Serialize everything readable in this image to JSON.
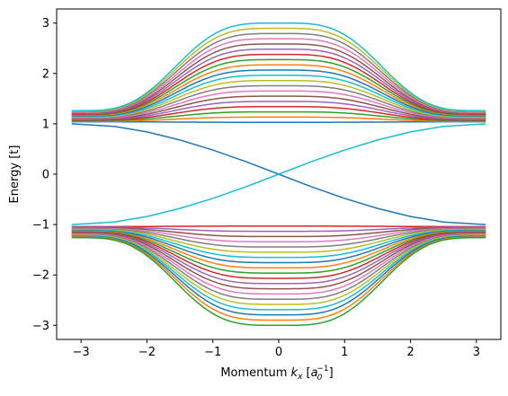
{
  "chart_data": {
    "type": "line",
    "title": "",
    "xlabel": "Momentum k_x [a_0^-1]",
    "xlabel_parts": {
      "main": "Momentum ",
      "k": "k",
      "k_sub": "x",
      "bracket_open": " [",
      "a": "a",
      "a_sub": "0",
      "a_sup": "−1",
      "bracket_close": "]"
    },
    "ylabel": "Energy [t]",
    "xlim": [
      -3.37,
      3.37
    ],
    "ylim": [
      -3.28,
      3.28
    ],
    "xticks": [
      -3,
      -2,
      -1,
      0,
      1,
      2,
      3
    ],
    "xtick_labels": [
      "−3",
      "−2",
      "−1",
      "0",
      "1",
      "2",
      "3"
    ],
    "yticks": [
      -3,
      -2,
      -1,
      0,
      1,
      2,
      3
    ],
    "ytick_labels": [
      "−3",
      "−2",
      "−1",
      "0",
      "1",
      "2",
      "3"
    ],
    "grid": false,
    "legend": "none",
    "kx_range": [
      -3.14159,
      3.14159
    ],
    "bands_per_side": 20,
    "band_center_min": 1.03,
    "band_center_max": 3.0,
    "band_edge_min": 1.04,
    "band_edge_max": 1.26,
    "edge_states": [
      {
        "name": "",
        "color": "#1f77b4",
        "x": [
          -3.14159,
          -2.5,
          -2.0,
          -1.5,
          -1.0,
          -0.5,
          0.0,
          0.5,
          1.0,
          1.5,
          2.0,
          2.5,
          3.14159
        ],
        "y": [
          1.0,
          0.95,
          0.84,
          0.68,
          0.48,
          0.25,
          0.0,
          -0.25,
          -0.48,
          -0.68,
          -0.84,
          -0.95,
          -1.0
        ]
      },
      {
        "name": "",
        "color": "#17becf",
        "x": [
          -3.14159,
          -2.5,
          -2.0,
          -1.5,
          -1.0,
          -0.5,
          0.0,
          0.5,
          1.0,
          1.5,
          2.0,
          2.5,
          3.14159
        ],
        "y": [
          -1.0,
          -0.95,
          -0.84,
          -0.68,
          -0.48,
          -0.25,
          0.0,
          0.25,
          0.48,
          0.68,
          0.84,
          0.95,
          1.0
        ]
      }
    ],
    "colors": [
      "#1f77b4",
      "#ff7f0e",
      "#2ca02c",
      "#d62728",
      "#9467bd",
      "#8c564b",
      "#e377c2",
      "#7f7f7f",
      "#bcbd22",
      "#17becf"
    ]
  }
}
